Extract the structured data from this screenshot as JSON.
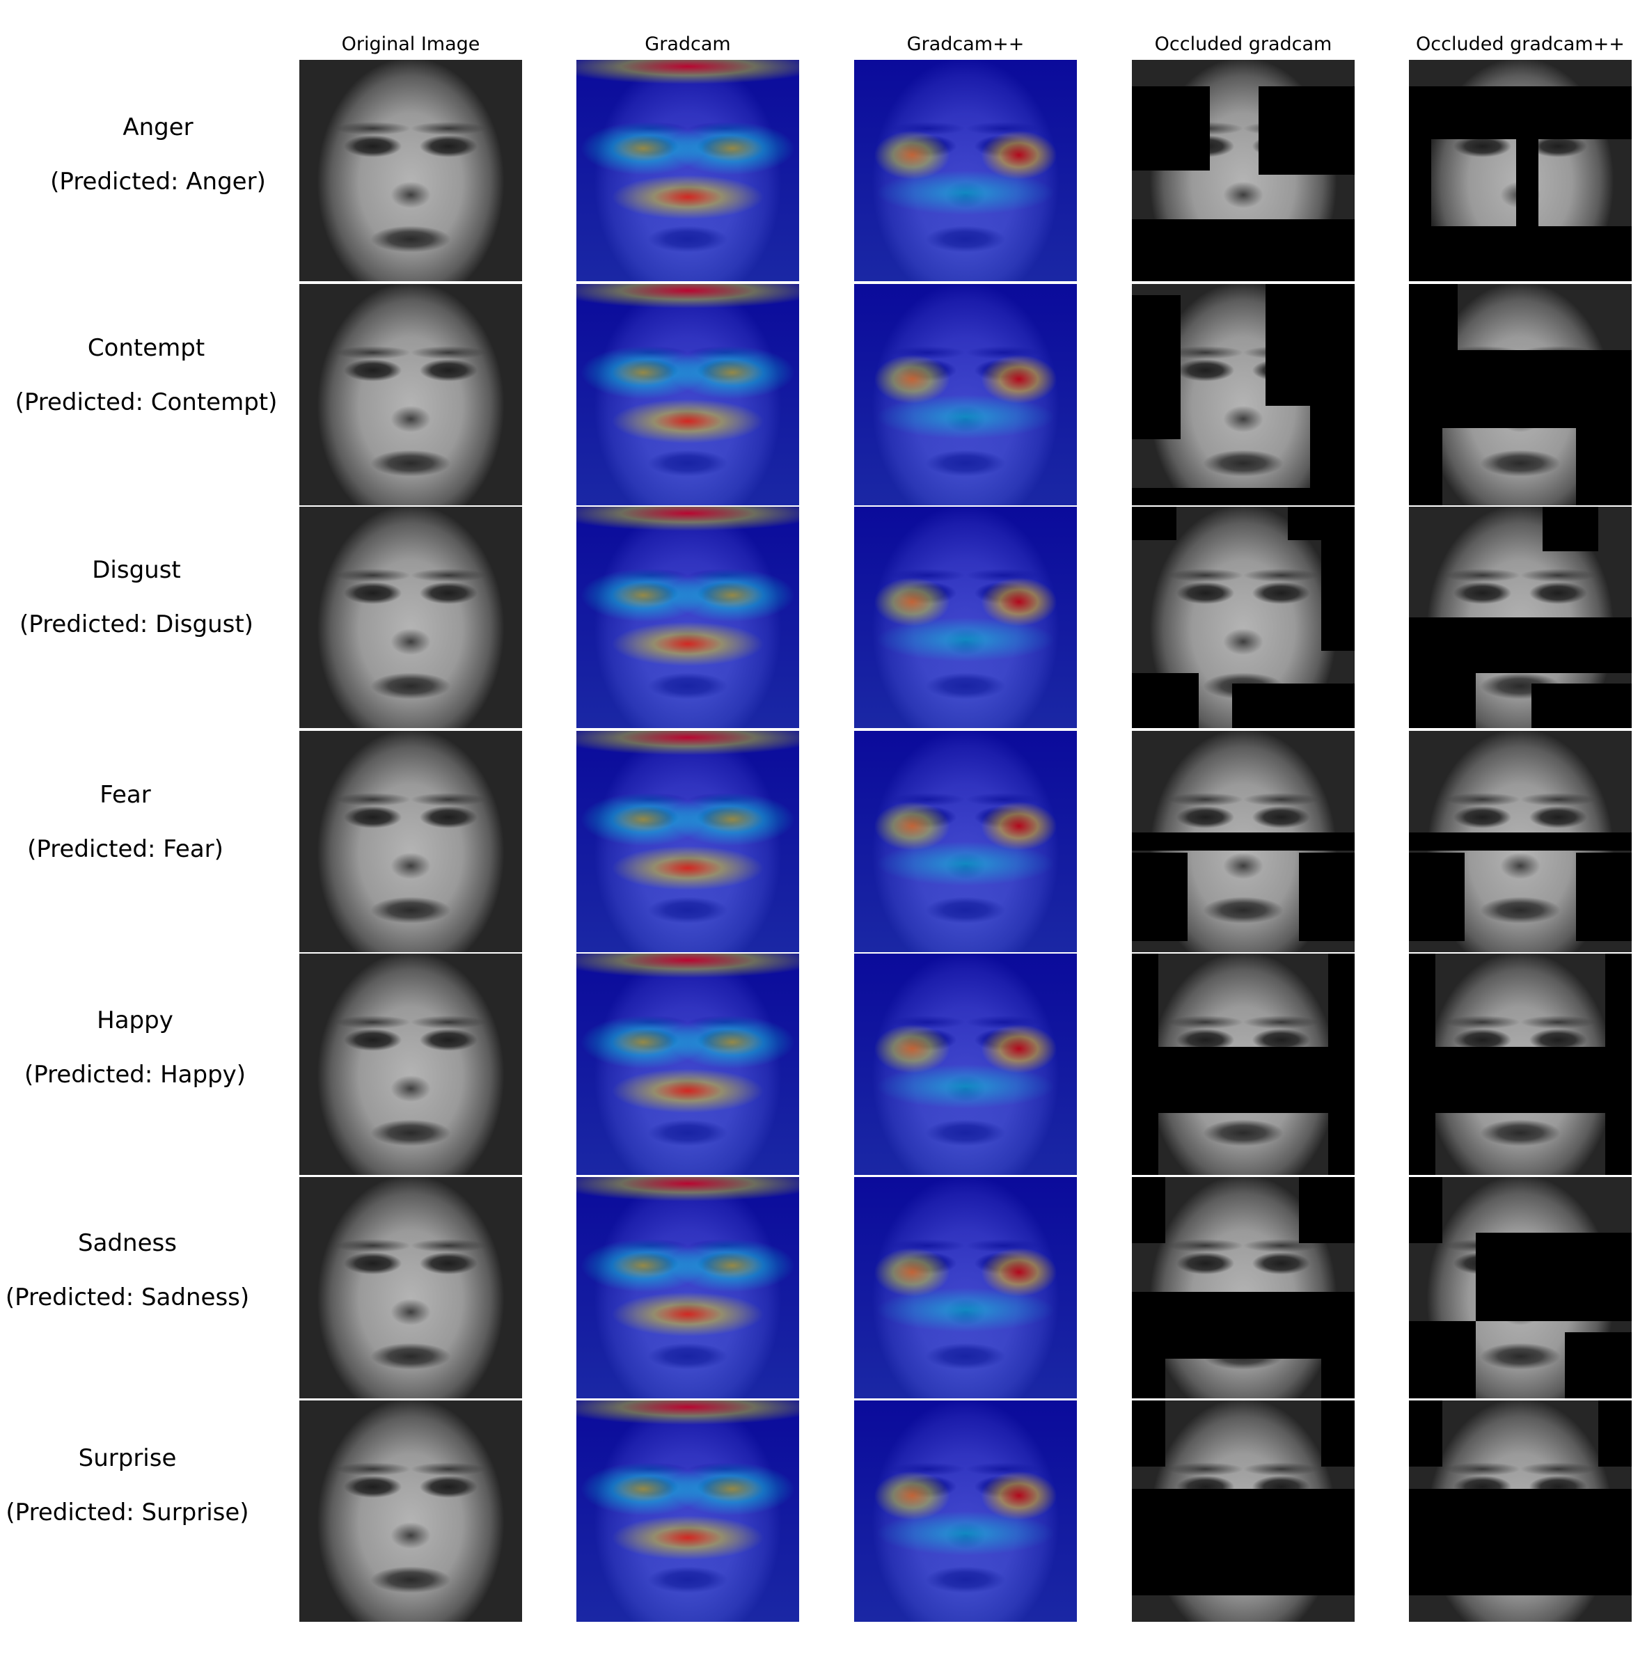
{
  "columns": [
    "Original Image",
    "Gradcam",
    "Gradcam++",
    "Occluded gradcam",
    "Occluded gradcam++"
  ],
  "rows": [
    {
      "emotion": "Anger",
      "predicted": "(Predicted: Anger)"
    },
    {
      "emotion": "Contempt",
      "predicted": "(Predicted: Contempt)"
    },
    {
      "emotion": "Disgust",
      "predicted": "(Predicted: Disgust)"
    },
    {
      "emotion": "Fear",
      "predicted": "(Predicted: Fear)"
    },
    {
      "emotion": "Happy",
      "predicted": "(Predicted: Happy)"
    },
    {
      "emotion": "Sadness",
      "predicted": "(Predicted: Sadness)"
    },
    {
      "emotion": "Surprise",
      "predicted": "(Predicted: Surprise)"
    }
  ],
  "colors": {
    "background": "#ffffff",
    "occlusion": "#000000",
    "heatmap": [
      "#00007f",
      "#0000ff",
      "#00ffff",
      "#ffff00",
      "#ff0000",
      "#7f0000"
    ]
  }
}
